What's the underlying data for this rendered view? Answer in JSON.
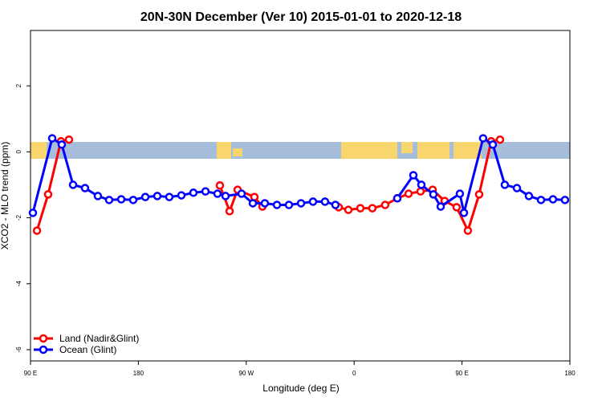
{
  "chart_data": {
    "type": "line",
    "title": "20N-30N December (Ver 10)   2015-01-01 to 2020-12-18",
    "x_label": "Longitude (deg E)",
    "y_label": "XCO2 - MLO trend (ppm)",
    "xlim": [
      90,
      540
    ],
    "xticks": [
      {
        "value": 90,
        "label": "90 E"
      },
      180,
      {
        "value": 270,
        "label": "90 W"
      },
      {
        "value": 360,
        "label": "0"
      },
      {
        "value": 450,
        "label": "90 E"
      },
      {
        "value": 540,
        "label": "180"
      }
    ],
    "ylim": [
      -6.34,
      3.68
    ],
    "yticks": [
      2,
      0,
      -2,
      -4,
      -6
    ],
    "legend": "bottom-left",
    "series": [
      {
        "name": "Land (Nadir&Glint)",
        "color": "#ff0000",
        "x": [
          95.4,
          104.7,
          115.4,
          122.1,
          null,
          248,
          256.1,
          262.8,
          276.8,
          283.5,
          null,
          347.1,
          355.2,
          365.2,
          375.2,
          385.9,
          396,
          405.4,
          415.4,
          425.5,
          435.5,
          445.5,
          454.9,
          464.3,
          474.3,
          481.7
        ],
        "values": [
          -2.39,
          -1.29,
          0.32,
          0.37,
          null,
          -1.02,
          -1.8,
          -1.15,
          -1.37,
          -1.66,
          null,
          -1.68,
          -1.76,
          -1.71,
          -1.71,
          -1.61,
          -1.41,
          -1.27,
          -1.2,
          -1.15,
          -1.49,
          -1.68,
          -2.39,
          -1.29,
          0.32,
          0.37
        ]
      },
      {
        "name": "Ocean (Glint)",
        "color": "#0000ff",
        "x": [
          92,
          108.1,
          116.1,
          125.5,
          135.5,
          146.2,
          155.6,
          165.7,
          175.7,
          185.8,
          195.8,
          205.8,
          215.9,
          225.9,
          236,
          246,
          252.7,
          266.1,
          275.5,
          285.5,
          295.6,
          305.6,
          315.7,
          325.7,
          335.7,
          344.4,
          null,
          396,
          409.4,
          416.1,
          426.1,
          432.2,
          448.2,
          451.6,
          467.6,
          475.7,
          485.7,
          495.8,
          505.8,
          515.9,
          525.9,
          535.9
        ],
        "values": [
          -1.85,
          0.41,
          0.22,
          -1.0,
          -1.1,
          -1.34,
          -1.46,
          -1.44,
          -1.46,
          -1.37,
          -1.34,
          -1.37,
          -1.32,
          -1.24,
          -1.2,
          -1.27,
          -1.34,
          -1.27,
          -1.56,
          -1.56,
          -1.61,
          -1.61,
          -1.56,
          -1.51,
          -1.51,
          -1.61,
          null,
          -1.41,
          -0.71,
          -1.0,
          -1.29,
          -1.66,
          -1.27,
          -1.85,
          0.41,
          0.22,
          -1.0,
          -1.1,
          -1.34,
          -1.46,
          -1.44,
          -1.46
        ]
      }
    ]
  }
}
